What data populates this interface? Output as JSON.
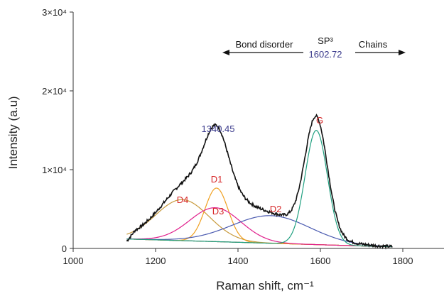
{
  "chart_data": {
    "type": "line",
    "title": "",
    "xlabel": "Raman shift, cm⁻¹",
    "ylabel": "Intensity (a.u)",
    "xlim": [
      1000,
      1900
    ],
    "ylim": [
      0,
      30000
    ],
    "x_ticks": [
      1000,
      1200,
      1400,
      1600,
      1800
    ],
    "x_tick_labels": [
      "1000",
      "1200",
      "1400",
      "1600",
      "1800"
    ],
    "y_ticks": [
      0,
      10000,
      20000,
      30000
    ],
    "y_tick_labels": [
      "0",
      "1×10⁴",
      "2×10⁴",
      "3×10⁴"
    ],
    "grid": false,
    "baseline": {
      "start": [
        1130,
        1200
      ],
      "end": [
        1775,
        200
      ],
      "color": "#7a3b10"
    },
    "peaks": [
      {
        "name": "D4",
        "center": 1265,
        "height": 5200,
        "width": 65,
        "color": "#c89a3c"
      },
      {
        "name": "D1",
        "center": 1348,
        "height": 6800,
        "width": 28,
        "color": "#f0a020"
      },
      {
        "name": "D3",
        "center": 1345,
        "height": 4300,
        "width": 62,
        "color": "#e0208c"
      },
      {
        "name": "D2",
        "center": 1480,
        "height": 3500,
        "width": 95,
        "color": "#4a5ab0"
      },
      {
        "name": "G",
        "center": 1590,
        "height": 14500,
        "width": 27,
        "color": "#20a080"
      }
    ],
    "annotations": {
      "sp3_label": "SP³",
      "left_arrow_text": "Bond disorder",
      "right_arrow_text": "Chains",
      "peak_1_value": "1340.45",
      "peak_2_value": "1602.72"
    }
  }
}
